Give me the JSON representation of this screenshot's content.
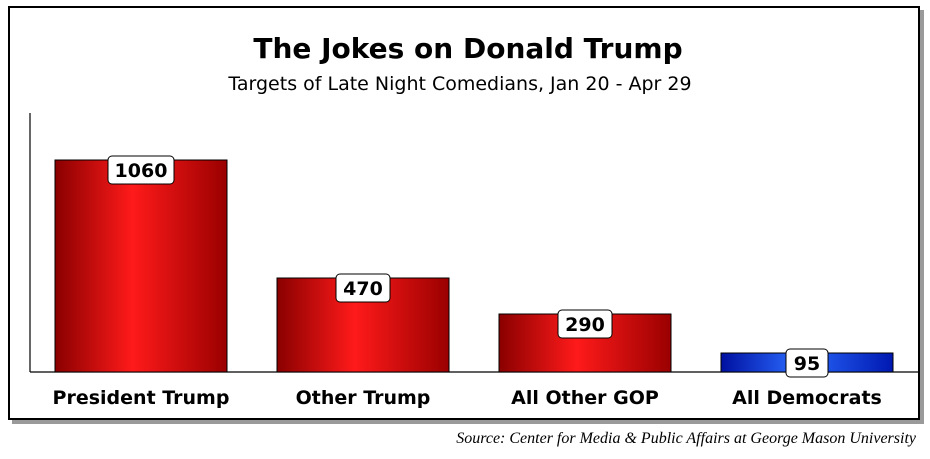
{
  "chart_data": {
    "type": "bar",
    "title": "The Jokes on Donald Trump",
    "subtitle": "Targets of Late Night Comedians, Jan 20 - Apr 29",
    "categories": [
      "President Trump",
      "Other Trump",
      "All Other GOP",
      "All Democrats"
    ],
    "values": [
      1060,
      470,
      290,
      95
    ],
    "data_labels": [
      "1060",
      "470",
      "290",
      "95"
    ],
    "bar_colors": [
      "#e00000",
      "#e00000",
      "#e00000",
      "#0a3cff"
    ],
    "xlabel": "",
    "ylabel": "",
    "ylim": [
      0,
      1150
    ],
    "grid": false,
    "legend": "none"
  },
  "source": "Source: Center for Media & Public Affairs at George Mason University"
}
